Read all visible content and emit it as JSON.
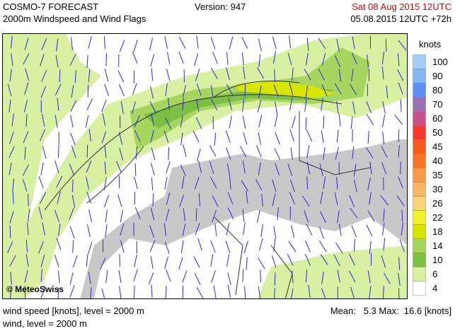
{
  "header": {
    "title": "COSMO-7 FORECAST",
    "subtitle": "2000m Windspeed and Wind Flags",
    "version": "Version: 947",
    "valid_time": "Sat 08 Aug 2015 12UTC",
    "run_time": "05.08.2015 12UTC +72h"
  },
  "map": {
    "credit": "© MeteoSwiss"
  },
  "legend": {
    "unit": "knots",
    "items": [
      {
        "label": 100,
        "color": "#a8cdf5"
      },
      {
        "label": 90,
        "color": "#84b6f2"
      },
      {
        "label": 80,
        "color": "#5b8ef0"
      },
      {
        "label": 70,
        "color": "#9a72b4"
      },
      {
        "label": 60,
        "color": "#c4508a"
      },
      {
        "label": 50,
        "color": "#f03a30"
      },
      {
        "label": 45,
        "color": "#f55a1e"
      },
      {
        "label": 40,
        "color": "#f5782a"
      },
      {
        "label": 35,
        "color": "#f59a48"
      },
      {
        "label": 30,
        "color": "#f8b668"
      },
      {
        "label": 26,
        "color": "#f8d47a"
      },
      {
        "label": 22,
        "color": "#f2f030"
      },
      {
        "label": 18,
        "color": "#d6e600"
      },
      {
        "label": 14,
        "color": "#a6d660"
      },
      {
        "label": 10,
        "color": "#7cbf44"
      },
      {
        "label": 6,
        "color": "#d9f0a3"
      },
      {
        "label": 4,
        "color": "#ffffff"
      }
    ]
  },
  "footer": {
    "line1": "wind speed [knots], level = 2000 m",
    "line2": "wind, level = 2000 m",
    "stats": "Mean:   5.3 Max:  16.6 [knots]"
  }
}
